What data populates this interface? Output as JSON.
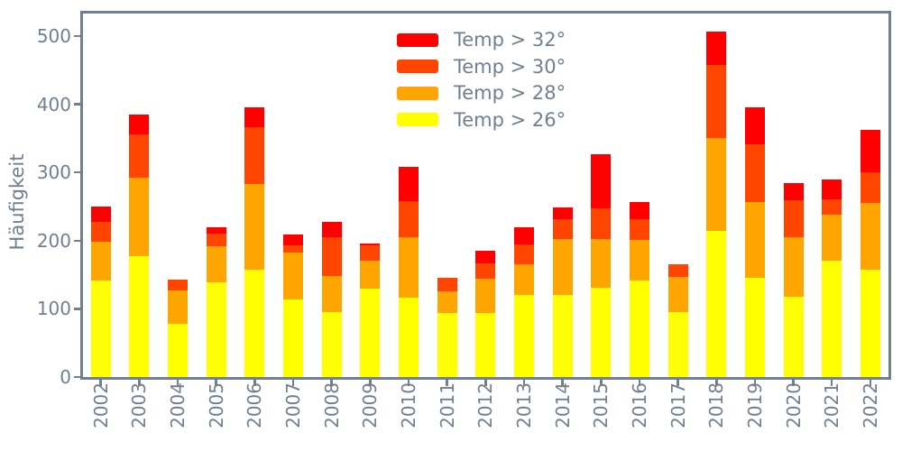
{
  "chart_data": {
    "type": "bar",
    "stacked": true,
    "title": "",
    "xlabel": "",
    "ylabel": "Häufigkeit",
    "grid": false,
    "background": "#FFFFFF",
    "axis_color": "#708090",
    "ylim": [
      0,
      533
    ],
    "yticks": [
      0,
      100,
      200,
      300,
      400,
      500
    ],
    "categories": [
      "2002",
      "2003",
      "2004",
      "2005",
      "2006",
      "2007",
      "2008",
      "2009",
      "2010",
      "2011",
      "2012",
      "2013",
      "2014",
      "2015",
      "2016",
      "2017",
      "2018",
      "2019",
      "2020",
      "2021",
      "2022"
    ],
    "series": [
      {
        "name": "Temp > 26°",
        "color": "#FFFF00",
        "values": [
          142,
          177,
          78,
          139,
          158,
          114,
          95,
          129,
          117,
          94,
          94,
          120,
          120,
          131,
          141,
          95,
          214,
          145,
          118,
          171,
          158
        ]
      },
      {
        "name": "Temp > 28°",
        "color": "#FFA500",
        "values": [
          56,
          115,
          49,
          53,
          125,
          68,
          53,
          41,
          88,
          32,
          50,
          46,
          82,
          72,
          60,
          52,
          136,
          112,
          87,
          67,
          97
        ]
      },
      {
        "name": "Temp > 30°",
        "color": "#FF4500",
        "values": [
          30,
          64,
          16,
          18,
          84,
          11,
          57,
          23,
          53,
          19,
          23,
          28,
          30,
          44,
          31,
          18,
          107,
          84,
          54,
          22,
          45
        ]
      },
      {
        "name": "Temp > 32°",
        "color": "#FF0000",
        "values": [
          22,
          29,
          0,
          10,
          28,
          16,
          23,
          3,
          50,
          0,
          18,
          26,
          17,
          80,
          24,
          0,
          50,
          54,
          26,
          30,
          63
        ]
      }
    ],
    "totals": [
      250,
      385,
      143,
      220,
      395,
      209,
      228,
      196,
      308,
      145,
      185,
      220,
      249,
      327,
      256,
      165,
      507,
      395,
      285,
      290,
      363
    ],
    "legend": {
      "entries": [
        "Temp > 32°",
        "Temp > 30°",
        "Temp > 28°",
        "Temp > 26°"
      ],
      "position": "upper center",
      "frame": false
    }
  }
}
